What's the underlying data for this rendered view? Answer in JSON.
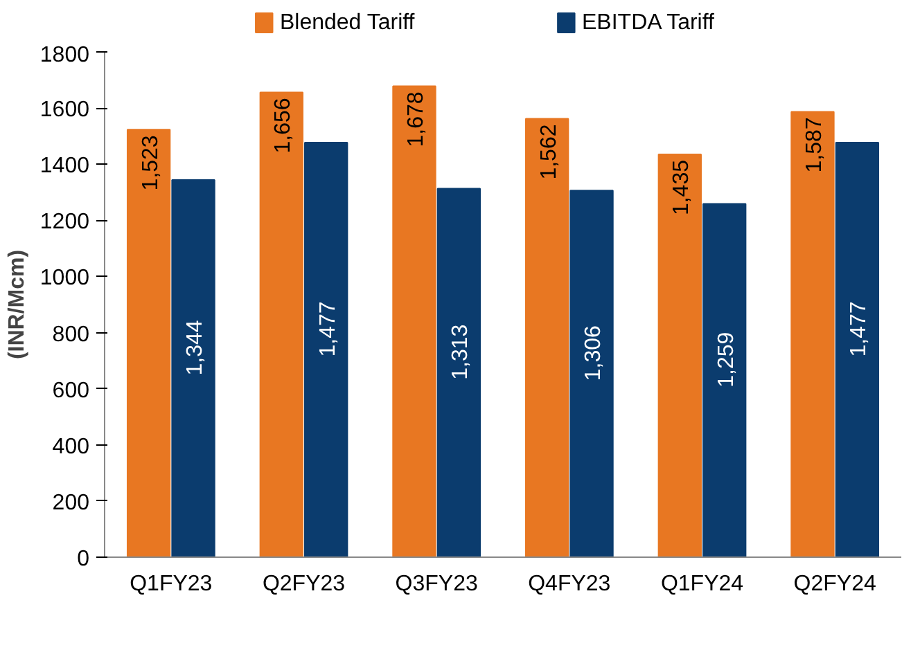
{
  "chart_data": {
    "type": "bar",
    "ylabel": "(INR/Mcm)",
    "categories": [
      "Q1FY23",
      "Q2FY23",
      "Q3FY23",
      "Q4FY23",
      "Q1FY24",
      "Q2FY24"
    ],
    "series": [
      {
        "name": "Blended Tariff",
        "color": "#e87722",
        "values": [
          1523,
          1656,
          1678,
          1562,
          1435,
          1587
        ],
        "value_labels": [
          "1,523",
          "1,656",
          "1,678",
          "1,562",
          "1,435",
          "1,587"
        ]
      },
      {
        "name": "EBITDA Tariff",
        "color": "#0b3c6e",
        "values": [
          1344,
          1477,
          1313,
          1306,
          1259,
          1477
        ],
        "value_labels": [
          "1,344",
          "1,477",
          "1,313",
          "1,306",
          "1,259",
          "1,477"
        ]
      }
    ],
    "ylim": [
      0,
      1800
    ],
    "yticks": [
      0,
      200,
      400,
      600,
      800,
      1000,
      1200,
      1400,
      1600,
      1800
    ],
    "grid": false,
    "data_labels": true,
    "legend": "top"
  }
}
